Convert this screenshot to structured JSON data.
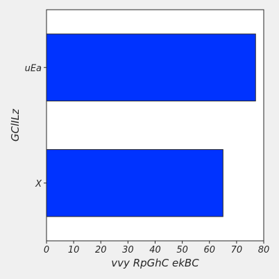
{
  "chart_data": {
    "type": "bar",
    "orientation": "horizontal",
    "categories": [
      "X",
      "uEa"
    ],
    "values": [
      65,
      77
    ],
    "title": "",
    "xlabel": "vvy RpGhC ekBC",
    "ylabel": "GClILz",
    "xlim": [
      0,
      80
    ],
    "xticks": [
      0,
      10,
      20,
      30,
      40,
      50,
      60,
      70,
      80
    ],
    "grid": false,
    "bar_color": "#0033ff",
    "background_color": "#f0f0f0",
    "plot_background": "#ffffff"
  }
}
